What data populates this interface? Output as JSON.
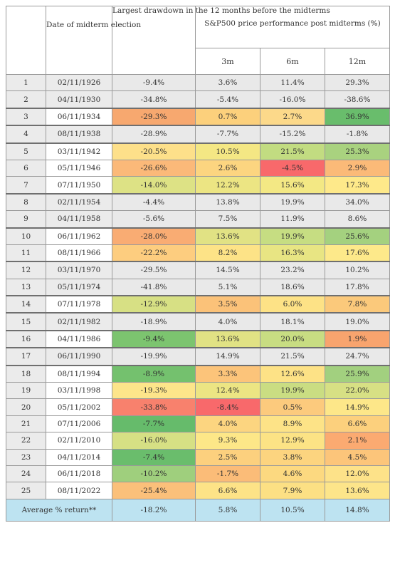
{
  "chart_data": {
    "type": "table",
    "headers": {
      "date": "Date of midterm election",
      "drawdown": "Largest drawdown in the 12 months before the midterms",
      "performance": "S&P500 price performance post midterms (%)",
      "periods": [
        "3m",
        "6m",
        "12m"
      ]
    },
    "rows": [
      {
        "n": "1",
        "date": "02/11/1926",
        "drawdown": "-9.4%",
        "m3": "3.6%",
        "m6": "11.4%",
        "m12": "29.3%",
        "shaded": false,
        "c": [
          "#e9e9e9",
          "#e9e9e9",
          "#e9e9e9",
          "#e9e9e9"
        ]
      },
      {
        "n": "2",
        "date": "04/11/1930",
        "drawdown": "-34.8%",
        "m3": "-5.4%",
        "m6": "-16.0%",
        "m12": "-38.6%",
        "shaded": false,
        "c": [
          "#e9e9e9",
          "#e9e9e9",
          "#e9e9e9",
          "#e9e9e9"
        ]
      },
      {
        "n": "3",
        "date": "06/11/1934",
        "drawdown": "-29.3%",
        "m3": "0.7%",
        "m6": "2.7%",
        "m12": "36.9%",
        "shaded": true,
        "c": [
          "#f7a86f",
          "#fcd07c",
          "#fcd98a",
          "#69bd6c"
        ]
      },
      {
        "n": "4",
        "date": "08/11/1938",
        "drawdown": "-28.9%",
        "m3": "-7.7%",
        "m6": "-15.2%",
        "m12": "-1.8%",
        "shaded": false,
        "c": [
          "#e9e9e9",
          "#e9e9e9",
          "#e9e9e9",
          "#e9e9e9"
        ]
      },
      {
        "n": "5",
        "date": "03/11/1942",
        "drawdown": "-20.5%",
        "m3": "10.5%",
        "m6": "21.5%",
        "m12": "25.3%",
        "shaded": true,
        "c": [
          "#fde08a",
          "#f4e784",
          "#c2dc81",
          "#a9d27f"
        ]
      },
      {
        "n": "6",
        "date": "05/11/1946",
        "drawdown": "-26.6%",
        "m3": "2.6%",
        "m6": "-4.5%",
        "m12": "2.9%",
        "shaded": true,
        "c": [
          "#fbb979",
          "#fcd580",
          "#f8696b",
          "#fbba78"
        ]
      },
      {
        "n": "7",
        "date": "07/11/1950",
        "drawdown": "-14.0%",
        "m3": "12.2%",
        "m6": "15.6%",
        "m12": "17.3%",
        "shaded": true,
        "c": [
          "#dde285",
          "#ece583",
          "#f3e884",
          "#fee98a"
        ]
      },
      {
        "n": "8",
        "date": "02/11/1954",
        "drawdown": "-4.4%",
        "m3": "13.8%",
        "m6": "19.9%",
        "m12": "34.0%",
        "shaded": false,
        "c": [
          "#e9e9e9",
          "#e9e9e9",
          "#e9e9e9",
          "#e9e9e9"
        ]
      },
      {
        "n": "9",
        "date": "04/11/1958",
        "drawdown": "-5.6%",
        "m3": "7.5%",
        "m6": "11.9%",
        "m12": "8.6%",
        "shaded": false,
        "c": [
          "#e9e9e9",
          "#e9e9e9",
          "#e9e9e9",
          "#e9e9e9"
        ]
      },
      {
        "n": "10",
        "date": "06/11/1962",
        "drawdown": "-28.0%",
        "m3": "13.6%",
        "m6": "19.9%",
        "m12": "25.6%",
        "shaded": true,
        "c": [
          "#f9ac73",
          "#e1e284",
          "#c6dd82",
          "#a4d17f"
        ]
      },
      {
        "n": "11",
        "date": "08/11/1966",
        "drawdown": "-22.2%",
        "m3": "8.2%",
        "m6": "16.3%",
        "m12": "17.6%",
        "shaded": true,
        "c": [
          "#fdcd7f",
          "#fde387",
          "#e8e583",
          "#fde98a"
        ]
      },
      {
        "n": "12",
        "date": "03/11/1970",
        "drawdown": "-29.5%",
        "m3": "14.5%",
        "m6": "23.2%",
        "m12": "10.2%",
        "shaded": false,
        "c": [
          "#e9e9e9",
          "#e9e9e9",
          "#e9e9e9",
          "#e9e9e9"
        ]
      },
      {
        "n": "13",
        "date": "05/11/1974",
        "drawdown": "-41.8%",
        "m3": "5.1%",
        "m6": "18.6%",
        "m12": "17.8%",
        "shaded": false,
        "c": [
          "#e9e9e9",
          "#e9e9e9",
          "#e9e9e9",
          "#e9e9e9"
        ]
      },
      {
        "n": "14",
        "date": "07/11/1978",
        "drawdown": "-12.9%",
        "m3": "3.5%",
        "m6": "6.0%",
        "m12": "7.8%",
        "shaded": true,
        "c": [
          "#d7e084",
          "#fbc279",
          "#fde286",
          "#fbc97b"
        ]
      },
      {
        "n": "15",
        "date": "02/11/1982",
        "drawdown": "-18.9%",
        "m3": "4.0%",
        "m6": "18.1%",
        "m12": "19.0%",
        "shaded": false,
        "c": [
          "#e9e9e9",
          "#e9e9e9",
          "#e9e9e9",
          "#e9e9e9"
        ]
      },
      {
        "n": "16",
        "date": "04/11/1986",
        "drawdown": "-9.4%",
        "m3": "13.6%",
        "m6": "20.0%",
        "m12": "1.9%",
        "shaded": true,
        "c": [
          "#7cc46f",
          "#e1e284",
          "#c8dd82",
          "#f8a46e"
        ]
      },
      {
        "n": "17",
        "date": "06/11/1990",
        "drawdown": "-19.9%",
        "m3": "14.9%",
        "m6": "21.5%",
        "m12": "24.7%",
        "shaded": false,
        "c": [
          "#e9e9e9",
          "#e9e9e9",
          "#e9e9e9",
          "#e9e9e9"
        ]
      },
      {
        "n": "18",
        "date": "08/11/1994",
        "drawdown": "-8.9%",
        "m3": "3.3%",
        "m6": "12.6%",
        "m12": "25.9%",
        "shaded": true,
        "c": [
          "#74c16e",
          "#fcc47a",
          "#fde286",
          "#a2d07f"
        ]
      },
      {
        "n": "19",
        "date": "03/11/1998",
        "drawdown": "-19.3%",
        "m3": "12.4%",
        "m6": "19.9%",
        "m12": "22.0%",
        "shaded": true,
        "c": [
          "#fde58a",
          "#ece583",
          "#cadd82",
          "#d7e084"
        ]
      },
      {
        "n": "20",
        "date": "05/11/2002",
        "drawdown": "-33.8%",
        "m3": "-8.4%",
        "m6": "0.5%",
        "m12": "14.9%",
        "shaded": true,
        "c": [
          "#f8816d",
          "#f8696b",
          "#fcca7d",
          "#fde789"
        ]
      },
      {
        "n": "21",
        "date": "07/11/2006",
        "drawdown": "-7.7%",
        "m3": "4.0%",
        "m6": "8.9%",
        "m12": "6.6%",
        "shaded": true,
        "c": [
          "#66bb6b",
          "#fcd580",
          "#fde387",
          "#fcd07d"
        ]
      },
      {
        "n": "22",
        "date": "02/11/2010",
        "drawdown": "-16.0%",
        "m3": "9.3%",
        "m6": "12.9%",
        "m12": "2.1%",
        "shaded": true,
        "c": [
          "#d6e084",
          "#fde788",
          "#fce385",
          "#fbaa71"
        ]
      },
      {
        "n": "23",
        "date": "04/11/2014",
        "drawdown": "-7.4%",
        "m3": "2.5%",
        "m6": "3.8%",
        "m12": "4.5%",
        "shaded": true,
        "c": [
          "#6abd6c",
          "#fcd07e",
          "#fcd47f",
          "#fcc57a"
        ]
      },
      {
        "n": "24",
        "date": "06/11/2018",
        "drawdown": "-10.2%",
        "m3": "-1.7%",
        "m6": "4.6%",
        "m12": "12.0%",
        "shaded": true,
        "c": [
          "#9fcf7d",
          "#fbbc78",
          "#fcd980",
          "#fde289"
        ]
      },
      {
        "n": "25",
        "date": "08/11/2022",
        "drawdown": "-25.4%",
        "m3": "6.6%",
        "m6": "7.9%",
        "m12": "13.6%",
        "shaded": true,
        "c": [
          "#fbc07a",
          "#fde387",
          "#fce084",
          "#fde58a"
        ]
      }
    ],
    "average": {
      "label": "Average % return**",
      "drawdown": "-18.2%",
      "m3": "5.8%",
      "m6": "10.5%",
      "m12": "14.8%"
    },
    "group_starts": [
      "3",
      "4",
      "5",
      "8",
      "10",
      "12",
      "14",
      "15",
      "16",
      "17",
      "18"
    ]
  }
}
